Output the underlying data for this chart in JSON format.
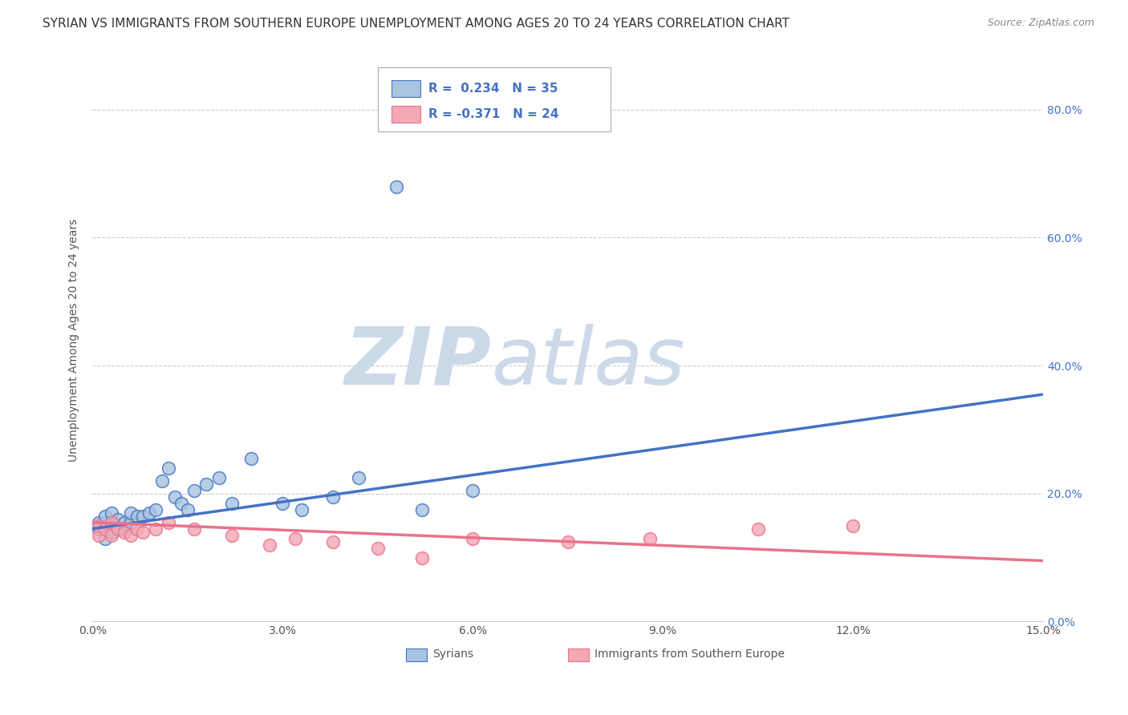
{
  "title": "SYRIAN VS IMMIGRANTS FROM SOUTHERN EUROPE UNEMPLOYMENT AMONG AGES 20 TO 24 YEARS CORRELATION CHART",
  "source": "Source: ZipAtlas.com",
  "ylabel": "Unemployment Among Ages 20 to 24 years",
  "xlim": [
    0.0,
    0.15
  ],
  "ylim": [
    0.0,
    0.88
  ],
  "xticks": [
    0.0,
    0.03,
    0.06,
    0.09,
    0.12,
    0.15
  ],
  "xtick_labels": [
    "0.0%",
    "3.0%",
    "6.0%",
    "9.0%",
    "12.0%",
    "15.0%"
  ],
  "ytick_labels": [
    "0.0%",
    "20.0%",
    "40.0%",
    "60.0%",
    "80.0%"
  ],
  "yticks": [
    0.0,
    0.2,
    0.4,
    0.6,
    0.8
  ],
  "color_syrian": "#a8c4e0",
  "color_europe": "#f4a7b5",
  "color_line_syrian": "#4472c4",
  "color_line_europe": "#e8738a",
  "background_color": "#ffffff",
  "watermark_zip": "ZIP",
  "watermark_atlas": "atlas",
  "watermark_color_zip": "#c8d8e8",
  "watermark_color_atlas": "#c8d8e8",
  "syrians_x": [
    0.001,
    0.001,
    0.002,
    0.002,
    0.002,
    0.003,
    0.003,
    0.003,
    0.004,
    0.004,
    0.005,
    0.005,
    0.006,
    0.006,
    0.007,
    0.008,
    0.009,
    0.01,
    0.011,
    0.012,
    0.013,
    0.014,
    0.015,
    0.016,
    0.018,
    0.02,
    0.022,
    0.025,
    0.03,
    0.033,
    0.038,
    0.042,
    0.052,
    0.06,
    0.048
  ],
  "syrians_y": [
    0.155,
    0.145,
    0.13,
    0.155,
    0.165,
    0.14,
    0.155,
    0.17,
    0.145,
    0.16,
    0.145,
    0.155,
    0.155,
    0.17,
    0.165,
    0.165,
    0.17,
    0.175,
    0.22,
    0.24,
    0.195,
    0.185,
    0.175,
    0.205,
    0.215,
    0.225,
    0.185,
    0.255,
    0.185,
    0.175,
    0.195,
    0.225,
    0.175,
    0.205,
    0.68
  ],
  "europe_x": [
    0.001,
    0.001,
    0.002,
    0.003,
    0.003,
    0.004,
    0.005,
    0.006,
    0.007,
    0.008,
    0.01,
    0.012,
    0.016,
    0.022,
    0.028,
    0.032,
    0.038,
    0.045,
    0.052,
    0.06,
    0.075,
    0.088,
    0.105,
    0.12
  ],
  "europe_y": [
    0.135,
    0.15,
    0.145,
    0.135,
    0.155,
    0.145,
    0.14,
    0.135,
    0.145,
    0.14,
    0.145,
    0.155,
    0.145,
    0.135,
    0.12,
    0.13,
    0.125,
    0.115,
    0.1,
    0.13,
    0.125,
    0.13,
    0.145,
    0.15
  ],
  "syrian_line_x0": 0.0,
  "syrian_line_y0": 0.145,
  "syrian_line_x1": 0.15,
  "syrian_line_y1": 0.355,
  "europe_line_x0": 0.0,
  "europe_line_y0": 0.155,
  "europe_line_x1": 0.15,
  "europe_line_y1": 0.095,
  "title_fontsize": 11,
  "label_fontsize": 10,
  "tick_fontsize": 10,
  "legend_fontsize": 11
}
